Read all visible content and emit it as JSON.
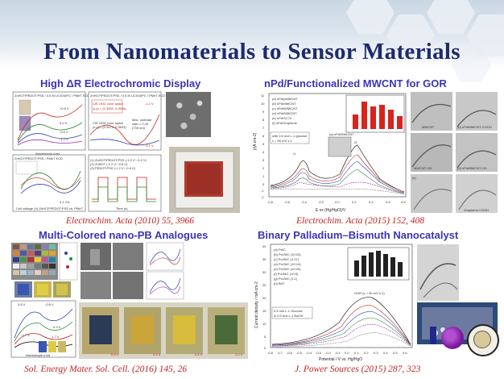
{
  "slide": {
    "title": "From Nanomaterials to Sensor Materials"
  },
  "sections": {
    "electrochromic": {
      "heading": "High ΔR Electrochromic Display",
      "citation": "Electrochim. Acta (2010) 55, 3966",
      "panel_a_title": "ZnHCF/PEDOT:PSS / 0.5 M LiClO4/PC / PMeT ECD",
      "panel_a_xlabel": "Wavelength (nm)",
      "panel_a_ylabel": "Transmittance (%T)",
      "panel_a_curves": [
        "+0.6 V",
        "0.0 V",
        "-0.6 V",
        "-1.2 V"
      ],
      "panel_b_title": "ZnHCF/PEDOT:PSS / 0.5 M LiClO4/PC / PMeT ECD",
      "panel_b_cie1": "CIE 1931 color space",
      "panel_b_cie1_val": "(x,y) = (0.3552, 0.3946)",
      "panel_b_cie2": "CIE 1931 color space",
      "panel_b_cie2_val": "(x,y) = (0.3474, 0.3633)",
      "panel_b_max": "Max. contrast",
      "panel_b_max_val": "ratio = 0.45",
      "panel_b_max_wl": "(730 nm)",
      "panel_b_v1": "-1.2 V",
      "panel_b_v2": "-0.2 V",
      "panel_c_title": "ZnHCF/PEDOT:PSS / PMeT ECD",
      "panel_c_xlabel": "Cell voltage (V)  ZnHCF/PEDOT:PSS vs. PMeT",
      "panel_c_ylabel": "Current density (mA cm-2)",
      "panel_c_scan": "0.1 V/s",
      "panel_d_xlabel": "Time (s)",
      "panel_d_ylabel": "Transmittance at 730 nm (%T)",
      "panel_d_legend": [
        "(1) ZnHCF/PEDOT:PSS (-1.2 V~-0.2 V)",
        "(2) ZnHCF (-1.2 V~-0.6 V)",
        "(3) PEDOT:PSS (-1.2 V~-0.6 V)"
      ]
    },
    "gor": {
      "heading": "nPd/Functionalized MWCNT for GOR",
      "citation": "Electrochim. Acta (2015) 152, 408",
      "legend": [
        "(a) nPd/pMWCNT",
        "(b) nPd/MWCNT",
        "(c) nPd/hMWCNT",
        "(d) nPd/fMWCNT",
        "(e) nPd/XC72",
        "(f) nPd/Graphene"
      ],
      "glucose_line1": "with 0.5 mol L-1 glucose",
      "glucose_line2": "v = 50 mV s-1",
      "xlabel": "E vs (Hg/HgO)/V",
      "ylabel": "j/(A cm-2)",
      "inset_label": "(a) nPd/fMWCNT",
      "peak_labels": [
        "I1",
        "I2"
      ],
      "y_ticks": [
        "11",
        "10",
        "9",
        "8",
        "7",
        "6",
        "5",
        "4",
        "3",
        "2",
        "1",
        "0",
        "-1",
        "-2"
      ],
      "x_ticks": [
        "-0.8",
        "-0.6",
        "-0.4",
        "-0.2",
        "0.0",
        "0.2",
        "0.4",
        "0.6",
        "0.8"
      ],
      "tem_labels": [
        "MWCNT",
        "(b) nPd/MWCNT-COOH",
        "MWCNT-OH",
        "(d) nPd/MWCNT-OH",
        "(e)",
        "Graphene-COOH"
      ]
    },
    "pb": {
      "heading": "Multi-Colored nano-PB Analogues",
      "citation": "Sol. Energy Mater. Sol. Cell. (2016) 145, 26",
      "xlabel": "Wavelength (nm)",
      "ylabel": "Transmittance (%)",
      "voltages": [
        "0.8 V",
        "0.4 V",
        "0.4 V",
        "1.0 V"
      ],
      "curve_labels": [
        "0.8 V",
        "-0.8 V",
        "0.3 V",
        "-1.7 V",
        "1.7 V"
      ]
    },
    "pdbi": {
      "heading": "Binary Palladium–Bismuth Nanocatalyst",
      "citation": "J. Power Sources (2015) 287, 323",
      "legend": [
        "(a) Pd/C",
        "(b) Pd-Bi/C (10.03)",
        "(c) Pd-Bi/C (1.07)",
        "(d) Pd-Bi/C (10.14)",
        "(e) Pd-Bi/C (10.25)",
        "(f) Pd-Bi/C (10.5)",
        "(g) Pd-Bi/C (1.1)",
        "(h) Bi/C"
      ],
      "gor_label": "GOR (v = 50 mV s-1)",
      "glucose_line1": "0.5 mol L-1 Glucose",
      "glucose_line2": "in 0.5 mol L-1 NaOH",
      "xlabel": "Potential / V vs. Hg/HgO",
      "ylabel": "Current density / mA cm-2",
      "y_ticks": [
        "40",
        "35",
        "30",
        "25",
        "20",
        "15",
        "10",
        "5",
        "0"
      ],
      "x_ticks": [
        "-0.8",
        "-0.7",
        "-0.6",
        "-0.5",
        "-0.4",
        "-0.3",
        "-0.2",
        "-0.1",
        "0.0",
        "0.1",
        "0.2",
        "0.3",
        "0.4",
        "0.5",
        "0.6"
      ]
    }
  }
}
